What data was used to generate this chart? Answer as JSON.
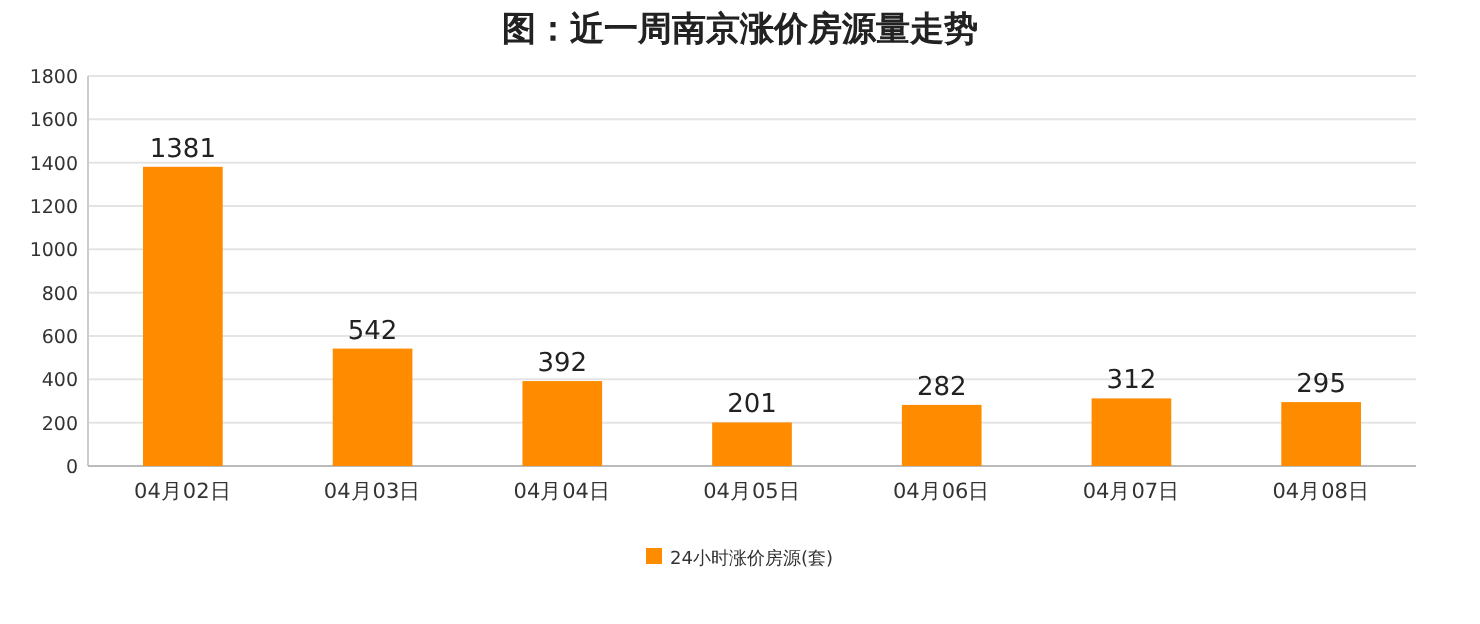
{
  "chart_data": {
    "type": "bar",
    "title": "图：近一周南京涨价房源量走势",
    "categories": [
      "04月02日",
      "04月03日",
      "04月04日",
      "04月05日",
      "04月06日",
      "04月07日",
      "04月08日"
    ],
    "series": [
      {
        "name": "24小时涨价房源(套)",
        "color": "#ff8c00",
        "values": [
          1381,
          542,
          392,
          201,
          282,
          312,
          295
        ]
      }
    ],
    "ylim": [
      0,
      1800
    ],
    "yticks": [
      0,
      200,
      400,
      600,
      800,
      1000,
      1200,
      1400,
      1600,
      1800
    ],
    "grid": "y",
    "legend": "bottom",
    "data_labels": true
  }
}
